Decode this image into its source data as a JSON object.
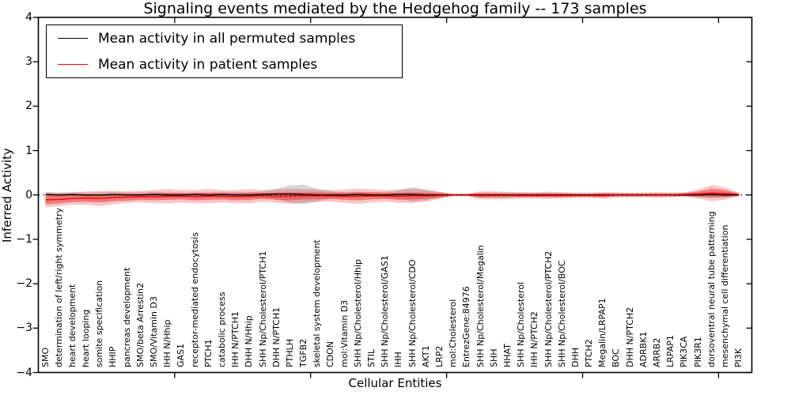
{
  "chart_data": {
    "type": "line",
    "title": "Signaling events mediated by the Hedgehog family -- 173 samples",
    "xlabel": "Cellular Entities",
    "ylabel": "Inferred Activity",
    "ylim": [
      -4,
      4
    ],
    "yticks": [
      4,
      3,
      2,
      1,
      0,
      -1,
      -2,
      -3,
      -4
    ],
    "x_major_tick_positions": [
      10,
      20,
      30,
      40,
      50
    ],
    "grid": false,
    "legend_position": "upper left",
    "categories": [
      "SMO",
      "determination of left/right symmetry",
      "heart development",
      "heart looping",
      "somite specification",
      "HHIP",
      "pancreas development",
      "SMO/beta Arrestin2",
      "SMO/Vitamin D3",
      "IHH N/Hhip",
      "GAS1",
      "receptor-mediated endocytosis",
      "PTCH1",
      "catabolic process",
      "IHH N/PTCH1",
      "DHH N/Hhip",
      "SHH Np/Cholesterol/PTCH1",
      "DHH N/PTCH1",
      "PTHLH",
      "TGFB2",
      "skeletal system development",
      "CDON",
      "mol:Vitamin D3",
      "SHH Np/Cholesterol/Hhip",
      "STIL",
      "SHH Np/Cholesterol/GAS1",
      "IHH",
      "SHH Np/Cholesterol/CDO",
      "AKT1",
      "LRP2",
      "mol:Cholesterol",
      "EntrezGene:84976",
      "SHH Np/Cholesterol/Megalin",
      "SHH",
      "HHAT",
      "SHH Np/Cholesterol",
      "IHH N/PTCH2",
      "SHH Np/Cholesterol/PTCH2",
      "SHH Np/Cholesterol/BOC",
      "DHH",
      "PTCH2",
      "Megalin/LRPAP1",
      "BOC",
      "DHH N/PTCH2",
      "ADRBK1",
      "ARRB2",
      "LRPAP1",
      "PIK3CA",
      "PIK3R1",
      "dorsoventral neural tube patterning",
      "mesenchymal cell differentiation",
      "PI3K"
    ],
    "series": [
      {
        "name": "Mean activity in all permuted samples",
        "color": "#000000",
        "style": "solid",
        "values": [
          0.01,
          0.0,
          0.01,
          0.0,
          0.0,
          0.01,
          0.0,
          0.0,
          0.01,
          0.0,
          0.0,
          0.01,
          0.0,
          0.01,
          0.0,
          0.0,
          0.01,
          0.02,
          0.02,
          0.01,
          0.0,
          0.0,
          0.0,
          0.01,
          0.0,
          0.0,
          0.01,
          0.01,
          0.0,
          0.0,
          0.0,
          0.0,
          0.0,
          0.0,
          0.0,
          0.0,
          0.0,
          0.0,
          0.0,
          0.0,
          0.0,
          0.0,
          0.0,
          0.0,
          0.0,
          0.0,
          0.0,
          0.0,
          0.0,
          0.01,
          0.0,
          0.0
        ]
      },
      {
        "name": "Mean activity in patient samples",
        "color": "#ff0000",
        "style": "solid",
        "values": [
          -0.11,
          -0.1,
          -0.08,
          -0.07,
          -0.08,
          -0.06,
          -0.05,
          -0.04,
          -0.04,
          -0.03,
          -0.03,
          -0.04,
          -0.03,
          -0.03,
          -0.04,
          -0.03,
          -0.02,
          -0.03,
          -0.03,
          -0.02,
          -0.02,
          -0.02,
          -0.03,
          -0.03,
          -0.02,
          -0.02,
          -0.03,
          -0.02,
          -0.02,
          -0.01,
          0.0,
          0.0,
          -0.01,
          -0.01,
          -0.01,
          -0.01,
          -0.01,
          -0.01,
          -0.01,
          -0.01,
          -0.01,
          -0.01,
          0.0,
          0.0,
          0.0,
          0.0,
          0.0,
          0.01,
          0.02,
          0.04,
          0.03,
          0.01
        ]
      }
    ],
    "bands": [
      {
        "name": "permuted-samples-std-band",
        "center_series": 0,
        "color": "#999999",
        "opacity": 0.4,
        "half_widths": [
          0.05,
          0.05,
          0.05,
          0.05,
          0.06,
          0.06,
          0.06,
          0.06,
          0.06,
          0.05,
          0.05,
          0.05,
          0.05,
          0.06,
          0.06,
          0.06,
          0.07,
          0.12,
          0.2,
          0.22,
          0.14,
          0.08,
          0.06,
          0.06,
          0.05,
          0.06,
          0.1,
          0.16,
          0.12,
          0.06,
          0.02,
          0.02,
          0.05,
          0.05,
          0.05,
          0.05,
          0.05,
          0.05,
          0.05,
          0.04,
          0.04,
          0.05,
          0.04,
          0.04,
          0.04,
          0.04,
          0.04,
          0.04,
          0.05,
          0.06,
          0.05,
          0.03
        ]
      },
      {
        "name": "patient-samples-outer-band",
        "center_series": 1,
        "color": "#f03030",
        "opacity": 0.28,
        "half_widths": [
          0.17,
          0.15,
          0.14,
          0.15,
          0.17,
          0.15,
          0.13,
          0.13,
          0.15,
          0.16,
          0.14,
          0.15,
          0.16,
          0.14,
          0.15,
          0.16,
          0.13,
          0.15,
          0.17,
          0.15,
          0.14,
          0.13,
          0.15,
          0.17,
          0.15,
          0.13,
          0.15,
          0.16,
          0.13,
          0.08,
          0.03,
          0.03,
          0.09,
          0.09,
          0.08,
          0.07,
          0.07,
          0.08,
          0.07,
          0.06,
          0.06,
          0.07,
          0.06,
          0.05,
          0.05,
          0.06,
          0.05,
          0.05,
          0.1,
          0.18,
          0.14,
          0.04
        ]
      },
      {
        "name": "patient-samples-inner-band",
        "center_series": 1,
        "color": "#e03030",
        "opacity": 0.5,
        "half_widths": [
          0.1,
          0.09,
          0.08,
          0.08,
          0.09,
          0.08,
          0.08,
          0.07,
          0.08,
          0.08,
          0.07,
          0.08,
          0.08,
          0.07,
          0.08,
          0.08,
          0.07,
          0.08,
          0.09,
          0.08,
          0.08,
          0.07,
          0.08,
          0.09,
          0.08,
          0.07,
          0.08,
          0.08,
          0.07,
          0.05,
          0.02,
          0.02,
          0.05,
          0.05,
          0.04,
          0.04,
          0.04,
          0.04,
          0.04,
          0.03,
          0.03,
          0.04,
          0.03,
          0.03,
          0.03,
          0.03,
          0.03,
          0.03,
          0.06,
          0.1,
          0.08,
          0.02
        ]
      }
    ],
    "zero_line": {
      "y": 0,
      "style": "dotted",
      "color": "#000000"
    }
  }
}
